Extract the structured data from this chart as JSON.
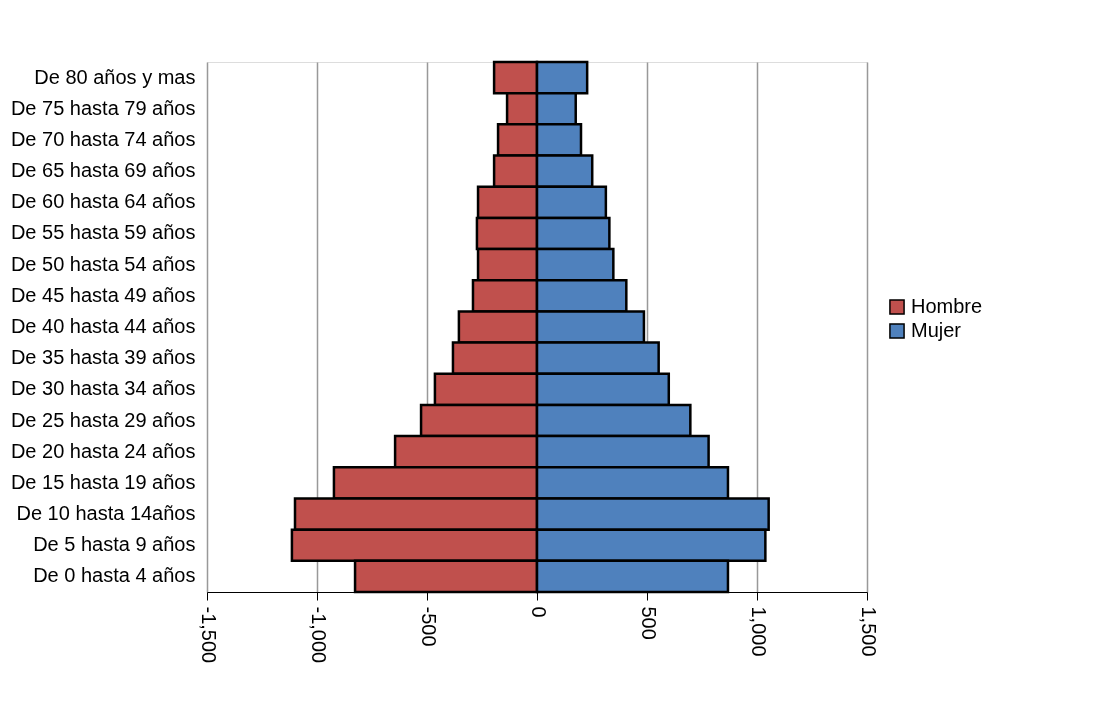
{
  "chart_data": {
    "type": "bar",
    "orientation": "horizontal",
    "categories": [
      "De 80 años y mas",
      "De 75 hasta 79 años",
      "De 70 hasta 74 años",
      "De 65 hasta 69 años",
      "De 60 hasta 64 años",
      "De 55 hasta 59 años",
      "De 50 hasta 54 años",
      "De 45 hasta 49 años",
      "De 40 hasta 44 años",
      "De 35 hasta 39 años",
      "De 30 hasta 34 años",
      "De 25 hasta 29 años",
      "De 20 hasta 24 años",
      "De 15 hasta 19 años",
      "De 10 hasta 14años",
      "De 5 hasta 9 años",
      "De 0 hasta 4 años"
    ],
    "series": [
      {
        "name": "Hombre",
        "color": "#c0504d",
        "values": [
          -195,
          -136,
          -177,
          -195,
          -268,
          -273,
          -268,
          -291,
          -355,
          -382,
          -464,
          -527,
          -645,
          -923,
          -1100,
          -1114,
          -827
        ]
      },
      {
        "name": "Mujer",
        "color": "#4f81bd",
        "values": [
          228,
          176,
          200,
          251,
          313,
          329,
          347,
          406,
          486,
          553,
          599,
          697,
          780,
          868,
          1053,
          1038,
          868
        ]
      }
    ],
    "xlim": [
      -1500,
      1500
    ],
    "xticks": [
      {
        "value": -1500,
        "label": "-1,500"
      },
      {
        "value": -1000,
        "label": "-1,000"
      },
      -500,
      0,
      500,
      {
        "value": 1000,
        "label": "1,000"
      },
      {
        "value": 1500,
        "label": "1,500"
      }
    ],
    "stacked": true,
    "grid": "x",
    "legend": "right"
  }
}
